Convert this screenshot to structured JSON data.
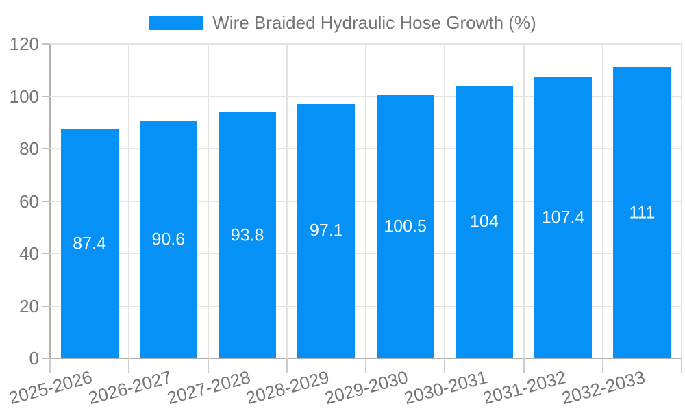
{
  "legend": {
    "label": "Wire Braided Hydraulic Hose Growth (%)"
  },
  "colors": {
    "bar": "#0691f7",
    "axis_text": "#757575",
    "bar_label_text": "#ffffff",
    "gridline": "#e3e3e3",
    "axis_line": "#b0b0b0",
    "background": "#ffffff"
  },
  "chart_data": {
    "type": "bar",
    "title": "Wire Braided Hydraulic Hose Growth (%)",
    "categories": [
      "2025-2026",
      "2026-2027",
      "2027-2028",
      "2028-2029",
      "2029-2030",
      "2030-2031",
      "2031-2032",
      "2032-2033"
    ],
    "values": [
      87.4,
      90.6,
      93.8,
      97.1,
      100.5,
      104,
      107.4,
      111
    ],
    "value_labels": [
      "87.4",
      "90.6",
      "93.8",
      "97.1",
      "100.5",
      "104",
      "107.4",
      "111"
    ],
    "xlabel": "",
    "ylabel": "",
    "ylim": [
      0,
      120
    ],
    "yticks": [
      0,
      20,
      40,
      60,
      80,
      100,
      120
    ],
    "grid": true,
    "legend_position": "top-center",
    "value_label_position": "center-of-bar",
    "x_tick_rotation_deg": -15
  }
}
